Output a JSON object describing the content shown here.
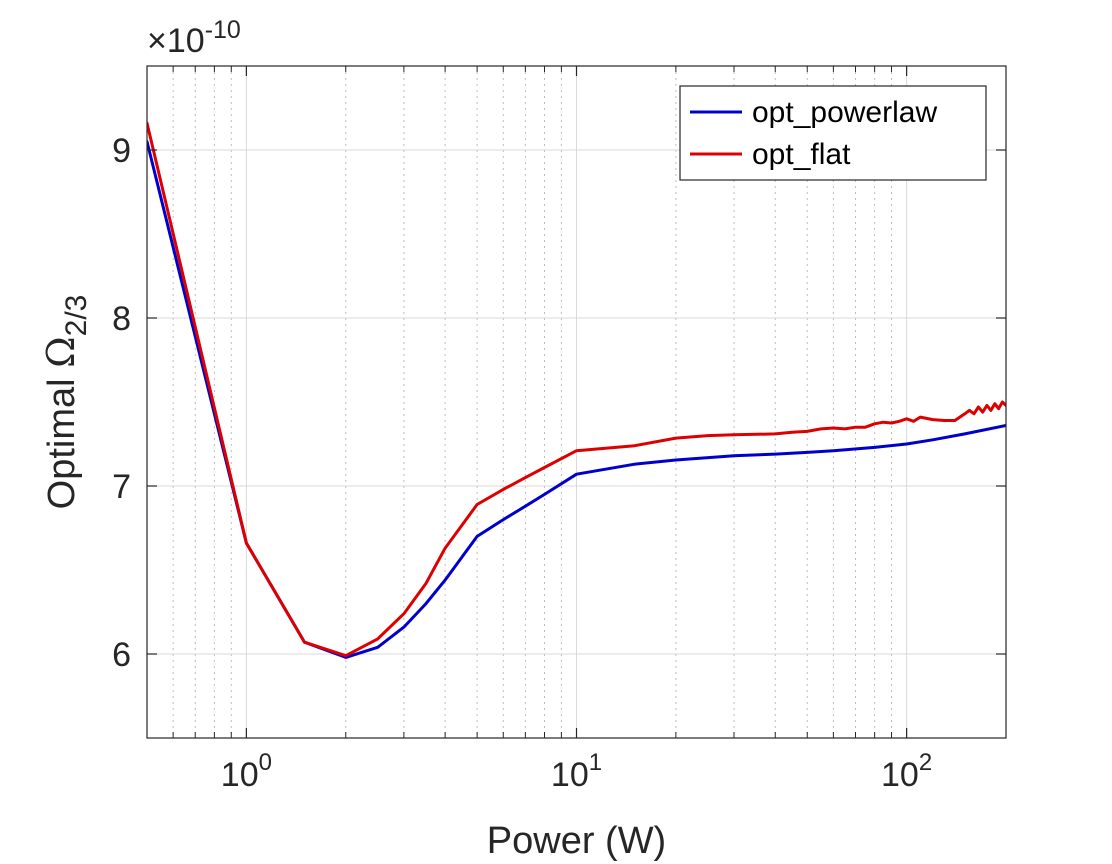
{
  "chart_data": {
    "type": "line",
    "title": "",
    "xlabel": "Power (W)",
    "ylabel": {
      "prefix": "Optimal ",
      "symbol": "Ω",
      "subscript": "2/3"
    },
    "x_scale": "log",
    "xlim": [
      0.5,
      200
    ],
    "ylim": [
      5.5,
      9.5
    ],
    "y_multiplier": {
      "base": "×10",
      "exponent": "-10"
    },
    "x_ticks": [
      {
        "value": 1,
        "base": "10",
        "exp": "0"
      },
      {
        "value": 10,
        "base": "10",
        "exp": "1"
      },
      {
        "value": 100,
        "base": "10",
        "exp": "2"
      }
    ],
    "y_ticks": [
      {
        "value": 6,
        "label": "6"
      },
      {
        "value": 7,
        "label": "7"
      },
      {
        "value": 8,
        "label": "8"
      },
      {
        "value": 9,
        "label": "9"
      }
    ],
    "grid": true,
    "legend_position": "top-right",
    "series": [
      {
        "name": "opt_powerlaw",
        "color": "#0000cc",
        "x": [
          0.5,
          1,
          1.5,
          2,
          2.5,
          3,
          3.5,
          4,
          5,
          6,
          7,
          8,
          10,
          15,
          20,
          30,
          40,
          50,
          60,
          80,
          100,
          120,
          150,
          200
        ],
        "y": [
          9.05,
          6.66,
          6.07,
          5.98,
          6.04,
          6.16,
          6.3,
          6.44,
          6.7,
          6.8,
          6.88,
          6.95,
          7.07,
          7.13,
          7.155,
          7.18,
          7.19,
          7.2,
          7.21,
          7.23,
          7.25,
          7.275,
          7.31,
          7.36
        ]
      },
      {
        "name": "opt_flat",
        "color": "#dd0000",
        "x": [
          0.5,
          1,
          1.5,
          2,
          2.5,
          3,
          3.5,
          4,
          5,
          6,
          7,
          8,
          10,
          15,
          20,
          25,
          30,
          40,
          45,
          50,
          55,
          60,
          65,
          70,
          75,
          80,
          85,
          90,
          95,
          100,
          105,
          110,
          120,
          130,
          140,
          150,
          155,
          160,
          165,
          170,
          175,
          180,
          185,
          190,
          195,
          200
        ],
        "y": [
          9.16,
          6.66,
          6.07,
          5.99,
          6.09,
          6.24,
          6.42,
          6.63,
          6.89,
          6.98,
          7.05,
          7.11,
          7.21,
          7.24,
          7.285,
          7.3,
          7.305,
          7.31,
          7.32,
          7.325,
          7.34,
          7.345,
          7.34,
          7.35,
          7.35,
          7.37,
          7.38,
          7.375,
          7.385,
          7.4,
          7.385,
          7.41,
          7.395,
          7.39,
          7.39,
          7.43,
          7.45,
          7.43,
          7.47,
          7.44,
          7.48,
          7.45,
          7.49,
          7.46,
          7.5,
          7.48
        ]
      }
    ]
  }
}
